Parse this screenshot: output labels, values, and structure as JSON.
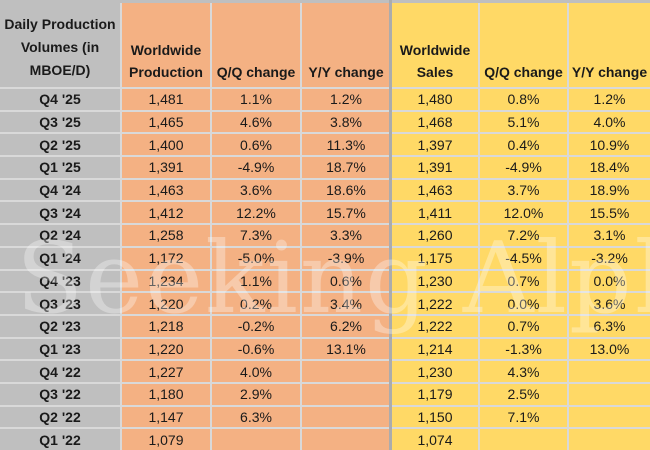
{
  "watermark": {
    "text": "Seeking Alpha"
  },
  "colors": {
    "label_gray": "#bfbfbf",
    "production_orange": "#f4b183",
    "sales_yellow": "#ffd966",
    "gridline": "#d9d9d9",
    "group_divider": "#acacac",
    "text": "#1a1a1a"
  },
  "chart_data": {
    "type": "table",
    "title": "Daily Production Volumes (in MBOE/D)",
    "corner_header": "Daily Production\nVolumes (in\nMBOE/D)",
    "column_headers": [
      "Worldwide\nProduction",
      "Q/Q change",
      "Y/Y change",
      "Worldwide\nSales",
      "Q/Q change",
      "Y/Y change"
    ],
    "column_groups": [
      "production",
      "production",
      "production",
      "sales",
      "sales",
      "sales"
    ],
    "rows": [
      {
        "label": "Q4 '25",
        "cells": [
          "1,481",
          "1.1%",
          "1.2%",
          "1,480",
          "0.8%",
          "1.2%"
        ]
      },
      {
        "label": "Q3 '25",
        "cells": [
          "1,465",
          "4.6%",
          "3.8%",
          "1,468",
          "5.1%",
          "4.0%"
        ]
      },
      {
        "label": "Q2 '25",
        "cells": [
          "1,400",
          "0.6%",
          "11.3%",
          "1,397",
          "0.4%",
          "10.9%"
        ]
      },
      {
        "label": "Q1 '25",
        "cells": [
          "1,391",
          "-4.9%",
          "18.7%",
          "1,391",
          "-4.9%",
          "18.4%"
        ]
      },
      {
        "label": "Q4 '24",
        "cells": [
          "1,463",
          "3.6%",
          "18.6%",
          "1,463",
          "3.7%",
          "18.9%"
        ]
      },
      {
        "label": "Q3 '24",
        "cells": [
          "1,412",
          "12.2%",
          "15.7%",
          "1,411",
          "12.0%",
          "15.5%"
        ]
      },
      {
        "label": "Q2 '24",
        "cells": [
          "1,258",
          "7.3%",
          "3.3%",
          "1,260",
          "7.2%",
          "3.1%"
        ]
      },
      {
        "label": "Q1 '24",
        "cells": [
          "1,172",
          "-5.0%",
          "-3.9%",
          "1,175",
          "-4.5%",
          "-3.2%"
        ]
      },
      {
        "label": "Q4 '23",
        "cells": [
          "1,234",
          "1.1%",
          "0.6%",
          "1,230",
          "0.7%",
          "0.0%"
        ]
      },
      {
        "label": "Q3 '23",
        "cells": [
          "1,220",
          "0.2%",
          "3.4%",
          "1,222",
          "0.0%",
          "3.6%"
        ]
      },
      {
        "label": "Q2 '23",
        "cells": [
          "1,218",
          "-0.2%",
          "6.2%",
          "1,222",
          "0.7%",
          "6.3%"
        ]
      },
      {
        "label": "Q1 '23",
        "cells": [
          "1,220",
          "-0.6%",
          "13.1%",
          "1,214",
          "-1.3%",
          "13.0%"
        ]
      },
      {
        "label": "Q4 '22",
        "cells": [
          "1,227",
          "4.0%",
          "",
          "1,230",
          "4.3%",
          ""
        ]
      },
      {
        "label": "Q3 '22",
        "cells": [
          "1,180",
          "2.9%",
          "",
          "1,179",
          "2.5%",
          ""
        ]
      },
      {
        "label": "Q2 '22",
        "cells": [
          "1,147",
          "6.3%",
          "",
          "1,150",
          "7.1%",
          ""
        ]
      },
      {
        "label": "Q1 '22",
        "cells": [
          "1,079",
          "",
          "",
          "1,074",
          "",
          ""
        ]
      }
    ]
  }
}
